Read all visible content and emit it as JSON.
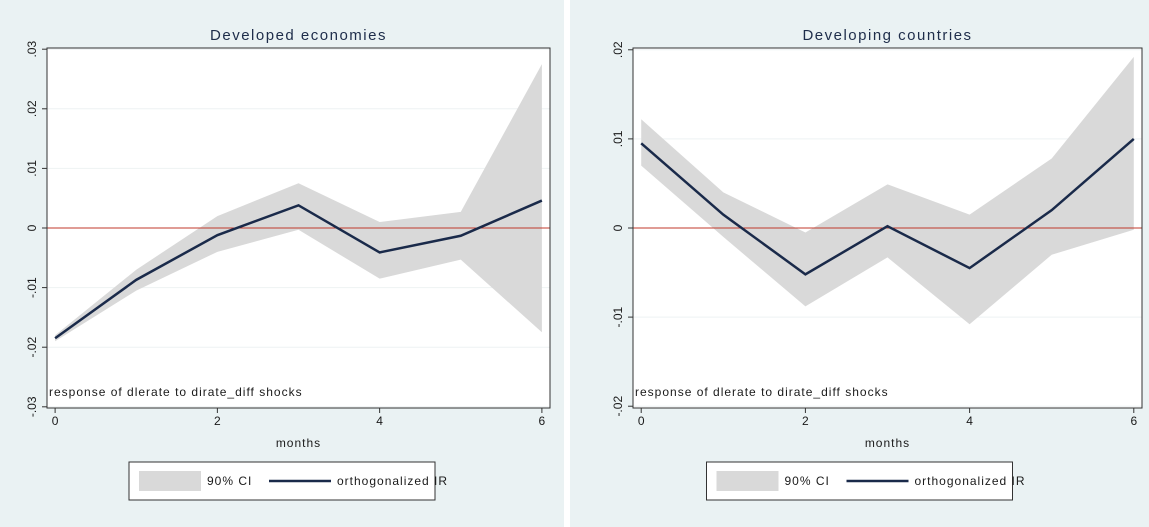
{
  "chart_data": [
    {
      "type": "line",
      "title": "Developed economies",
      "x_label": "months",
      "annotation": "response of dlerate to dirate_diff shocks",
      "x": [
        0,
        1,
        2,
        3,
        4,
        5,
        6
      ],
      "xlim": [
        -0.1,
        6.1
      ],
      "xticks": [
        0,
        2,
        4,
        6
      ],
      "ylim": [
        -0.0302,
        0.0302
      ],
      "yticks": [
        {
          "value": -0.03,
          "label": "-.03"
        },
        {
          "value": -0.02,
          "label": "-.02"
        },
        {
          "value": -0.01,
          "label": "-.01"
        },
        0,
        {
          "value": 0.01,
          "label": ".01"
        },
        {
          "value": 0.02,
          "label": ".02"
        },
        {
          "value": 0.03,
          "label": ".03"
        }
      ],
      "grid": true,
      "yline": 0,
      "yline_color": "#c0392b",
      "series": [
        {
          "name": "90% CI",
          "type": "band",
          "color": "#d9d9d9",
          "lower": [
            -0.019,
            -0.0105,
            -0.004,
            -0.0003,
            -0.0085,
            -0.0053,
            -0.0175
          ],
          "upper": [
            -0.018,
            -0.007,
            0.002,
            0.0075,
            0.001,
            0.0027,
            0.0275
          ]
        },
        {
          "name": "orthogonalized IR",
          "color": "#1a2a4a",
          "values": [
            -0.0185,
            -0.0087,
            -0.0012,
            0.0038,
            -0.0041,
            -0.0013,
            0.0046
          ]
        }
      ]
    },
    {
      "type": "line",
      "title": "Developing countries",
      "x_label": "months",
      "annotation": "response of dlerate to dirate_diff shocks",
      "x": [
        0,
        1,
        2,
        3,
        4,
        5,
        6
      ],
      "xlim": [
        -0.1,
        6.1
      ],
      "xticks": [
        0,
        2,
        4,
        6
      ],
      "ylim": [
        -0.0202,
        0.0202
      ],
      "yticks": [
        {
          "value": -0.02,
          "label": "-.02"
        },
        {
          "value": -0.01,
          "label": "-.01"
        },
        0,
        {
          "value": 0.01,
          "label": ".01"
        },
        {
          "value": 0.02,
          "label": ".02"
        }
      ],
      "grid": true,
      "yline": 0,
      "yline_color": "#c0392b",
      "series": [
        {
          "name": "90% CI",
          "type": "band",
          "color": "#d9d9d9",
          "lower": [
            0.007,
            -0.001,
            -0.0088,
            -0.0033,
            -0.0108,
            -0.003,
            -0.0002
          ],
          "upper": [
            0.0122,
            0.004,
            -0.0005,
            0.0049,
            0.0015,
            0.0078,
            0.0192
          ]
        },
        {
          "name": "orthogonalized IR",
          "color": "#1a2a4a",
          "values": [
            0.0095,
            0.0015,
            -0.0052,
            0.0002,
            -0.0045,
            0.002,
            0.01
          ]
        }
      ]
    }
  ]
}
